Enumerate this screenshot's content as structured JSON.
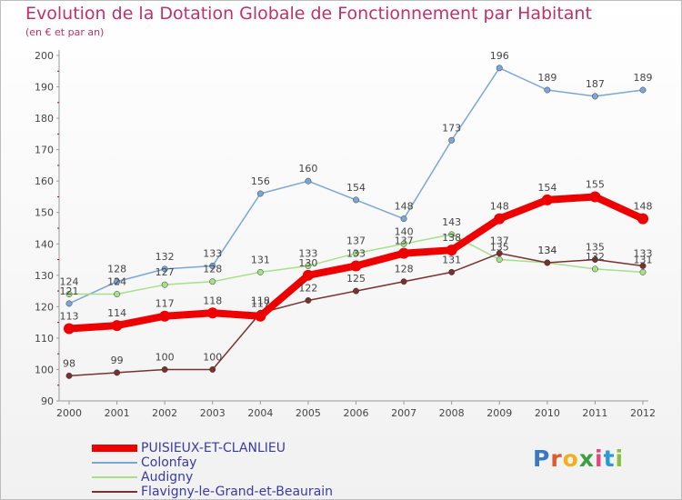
{
  "header": {
    "title": "Evolution de la Dotation Globale de Fonctionnement par Habitant",
    "subtitle": "(en € et par an)"
  },
  "logo": {
    "letters": [
      "P",
      "r",
      "o",
      "x",
      "i",
      "t",
      "i"
    ]
  },
  "chart_data": {
    "type": "line",
    "title": "Evolution de la Dotation Globale de Fonctionnement par Habitant",
    "subtitle": "(en € et par an)",
    "xlabel": "",
    "ylabel": "",
    "ylim": [
      90,
      200
    ],
    "yticks": [
      90,
      100,
      110,
      120,
      130,
      140,
      150,
      160,
      170,
      180,
      190,
      200
    ],
    "x": [
      "2000",
      "2001",
      "2002",
      "2003",
      "2004",
      "2005",
      "2006",
      "2007",
      "2008",
      "2009",
      "2010",
      "2011",
      "2012"
    ],
    "grid": false,
    "legend_position": "bottom-left",
    "series": [
      {
        "name": "PUISIEUX-ET-CLANLIEU",
        "color": "#ee0000",
        "values": [
          113,
          114,
          117,
          118,
          117,
          130,
          133,
          137,
          138,
          148,
          154,
          155,
          148
        ]
      },
      {
        "name": "Colonfay",
        "color": "#7aa6d8",
        "values": [
          121,
          128,
          132,
          133,
          156,
          160,
          154,
          148,
          173,
          196,
          189,
          187,
          189
        ]
      },
      {
        "name": "Audigny",
        "color": "#a6e08a",
        "values": [
          124,
          124,
          127,
          128,
          131,
          133,
          137,
          140,
          143,
          135,
          134,
          132,
          131
        ]
      },
      {
        "name": "Flavigny-le-Grand-et-Beaurain",
        "color": "#7a3030",
        "values": [
          98,
          99,
          100,
          100,
          118,
          122,
          125,
          128,
          131,
          137,
          134,
          135,
          133
        ]
      }
    ]
  }
}
